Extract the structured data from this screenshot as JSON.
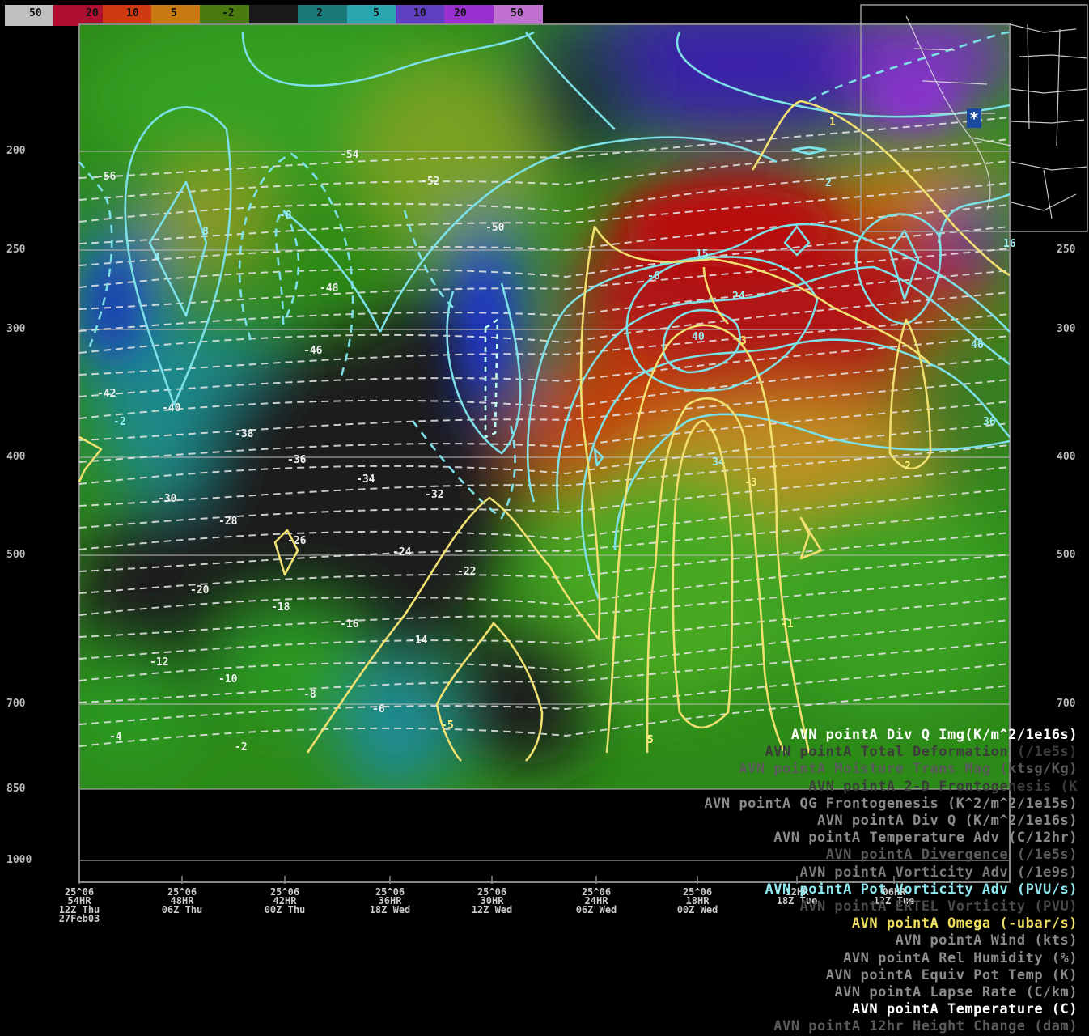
{
  "colorbar": {
    "labels": [
      "50",
      "20",
      "10",
      "5",
      "-2",
      "2",
      "5",
      "10",
      "20",
      "50"
    ],
    "colors": [
      "#c0c0c0",
      "#b01030",
      "#d03a10",
      "#c87a10",
      "#4a7a10",
      "#1a1a1a",
      "#1a7a7a",
      "#2aa6b0",
      "#6040c0",
      "#9a30d0",
      "#c070d0"
    ]
  },
  "chart_data": {
    "type": "heatmap",
    "title": "",
    "description_fields": "time-height cross section",
    "y_axis": {
      "ticks": [
        "200",
        "250",
        "300",
        "400",
        "500",
        "700",
        "850",
        "1000"
      ],
      "right_ticks": [
        "250",
        "300",
        "400",
        "500",
        "700"
      ]
    },
    "x_axis": {
      "ticks": [
        {
          "valid": "25^06",
          "fhr": "54HR",
          "day": "12Z Thu",
          "extra": "27Feb03"
        },
        {
          "valid": "25^06",
          "fhr": "48HR",
          "day": "06Z Thu",
          "extra": ""
        },
        {
          "valid": "25^06",
          "fhr": "42HR",
          "day": "00Z Thu",
          "extra": ""
        },
        {
          "valid": "25^06",
          "fhr": "36HR",
          "day": "18Z Wed",
          "extra": ""
        },
        {
          "valid": "25^06",
          "fhr": "30HR",
          "day": "12Z Wed",
          "extra": ""
        },
        {
          "valid": "25^06",
          "fhr": "24HR",
          "day": "06Z Wed",
          "extra": ""
        },
        {
          "valid": "25^06",
          "fhr": "18HR",
          "day": "00Z Wed",
          "extra": ""
        },
        {
          "valid": "",
          "fhr": "12HR",
          "day": "18Z Tue",
          "extra": ""
        },
        {
          "valid": "",
          "fhr": "06HR",
          "day": "12Z Tue",
          "extra": ""
        }
      ]
    },
    "temperature_contours": [
      "-56",
      "-54",
      "-52",
      "-50",
      "-48",
      "-46",
      "-42",
      "-40",
      "-38",
      "-36",
      "-34",
      "-32",
      "-30",
      "-28",
      "-26",
      "-24",
      "-22",
      "-20",
      "-18",
      "-16",
      "-14",
      "-12",
      "-10",
      "-8",
      "-6",
      "-4",
      "-2"
    ],
    "pv_contour_labels": [
      "-2",
      "-8",
      "-6",
      "2",
      "4",
      "8",
      "15",
      "16",
      "24",
      "34",
      "36",
      "40",
      "46"
    ],
    "omega_contour_labels": [
      "1",
      "3",
      "5",
      "-1",
      "-3",
      "-5",
      "2"
    ],
    "series": [
      {
        "name": "AVN pointA Div Q Img(K/m^2/1e16s)",
        "style": "image"
      },
      {
        "name": "AVN pointA Pot Vorticity Adv (PVU/s)",
        "style": "cyan contour"
      },
      {
        "name": "AVN pointA Omega (-ubar/s)",
        "style": "yellow contour"
      },
      {
        "name": "AVN pointA Temperature (C)",
        "style": "white dashed contour"
      }
    ]
  },
  "legend": {
    "items": [
      {
        "text": "AVN pointA Div Q Img(K/m^2/1e16s)",
        "color": "#ffffff"
      },
      {
        "text": "AVN pointA Total Deformation (/1e5s)",
        "color": "#3c3c3c"
      },
      {
        "text": "AVN pointA Moisture Trans Mag (ktsg/Kg)",
        "color": "#5a5a5a"
      },
      {
        "text": "AVN pointA 2-D Frontogenesis (K",
        "color": "#3c3c3c"
      },
      {
        "text": "AVN pointA QG Frontogenesis (K^2/m^2/1e15s)",
        "color": "#8a8a8a"
      },
      {
        "text": "AVN pointA Div Q (K/m^2/1e16s)",
        "color": "#8a8a8a"
      },
      {
        "text": "AVN pointA Temperature Adv (C/12hr)",
        "color": "#8a8a8a"
      },
      {
        "text": "AVN pointA Divergence (/1e5s)",
        "color": "#5a5a5a"
      },
      {
        "text": "AVN pointA Vorticity Adv (/1e9s)",
        "color": "#7a7a7a"
      },
      {
        "text": "AVN pointA Pot Vorticity Adv (PVU/s)",
        "color": "#8feaf0"
      },
      {
        "text": "AVN pointA ERTEL Vorticity (PVU)",
        "color": "#4a4a4a"
      },
      {
        "text": "AVN pointA Omega (-ubar/s)",
        "color": "#f0e060"
      },
      {
        "text": "AVN pointA Wind (kts)",
        "color": "#8a8a8a"
      },
      {
        "text": "AVN pointA Rel Humidity (%)",
        "color": "#8a8a8a"
      },
      {
        "text": "AVN pointA Equiv Pot Temp (K)",
        "color": "#8a8a8a"
      },
      {
        "text": "AVN pointA Lapse Rate (C/km)",
        "color": "#8a8a8a"
      },
      {
        "text": "AVN pointA Temperature (C)",
        "color": "#ffffff"
      },
      {
        "text": "AVN pointA 12hr Height Change (dam)",
        "color": "#5a5a5a"
      }
    ]
  },
  "inset_map": {
    "marker": "*"
  }
}
